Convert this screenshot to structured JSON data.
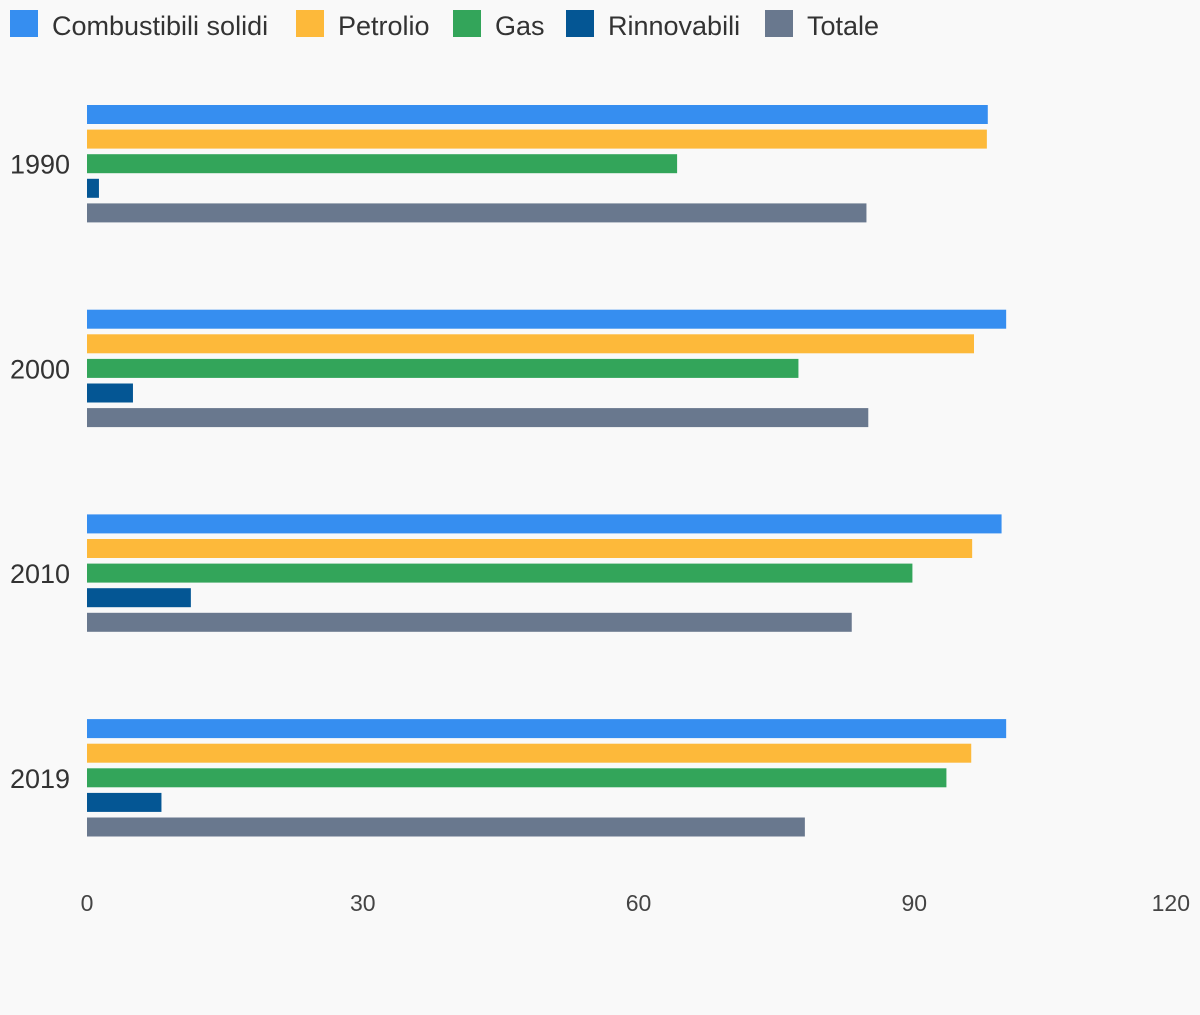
{
  "chart_data": {
    "type": "bar",
    "orientation": "horizontal",
    "title": "",
    "xlabel": "",
    "ylabel": "",
    "categories": [
      "1990",
      "2000",
      "2010",
      "2019"
    ],
    "series": [
      {
        "name": "Combustibili solidi",
        "color": "#368ef0",
        "values": [
          98.0,
          100.0,
          99.5,
          100.0
        ]
      },
      {
        "name": "Petrolio",
        "color": "#fdb93a",
        "values": [
          97.9,
          96.5,
          96.3,
          96.2
        ]
      },
      {
        "name": "Gas",
        "color": "#33a55a",
        "values": [
          64.2,
          77.4,
          89.8,
          93.5
        ]
      },
      {
        "name": "Rinnovabili",
        "color": "#045694",
        "values": [
          1.3,
          5.0,
          11.3,
          8.1
        ]
      },
      {
        "name": "Totale",
        "color": "#69788e",
        "values": [
          84.8,
          85.0,
          83.2,
          78.1
        ]
      }
    ],
    "xlim": [
      0,
      120
    ],
    "xticks": [
      "0",
      "30",
      "60",
      "90",
      "120"
    ],
    "grid": false,
    "legend_position": "top-left"
  }
}
